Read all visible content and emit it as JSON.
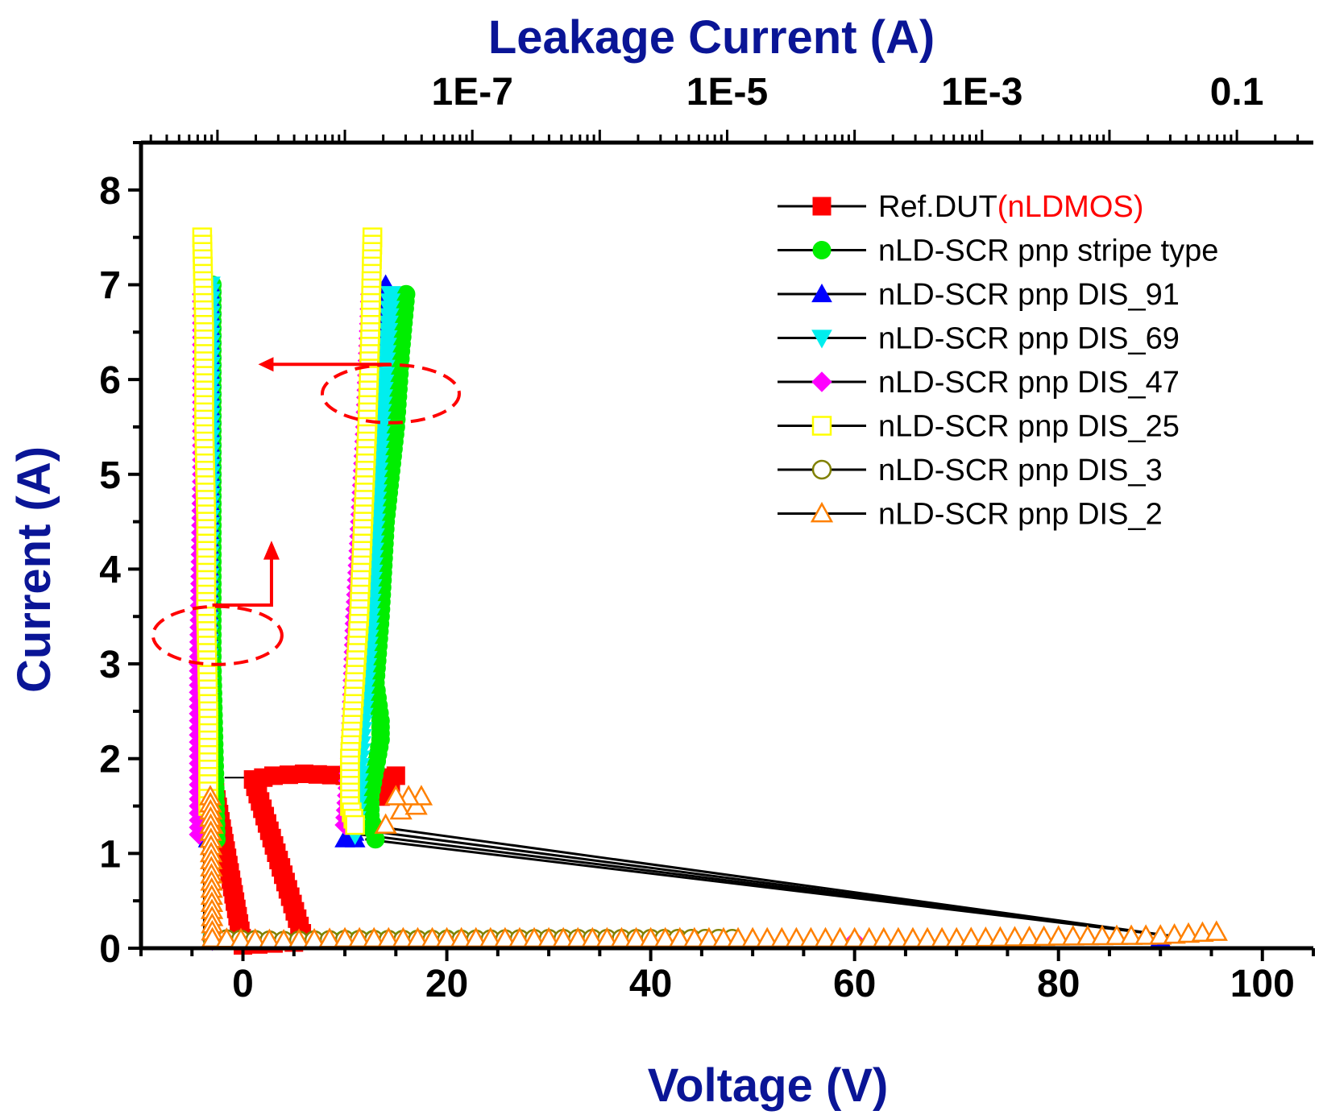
{
  "chart_data": {
    "type": "scatter",
    "xlabel": "Voltage (V)",
    "ylabel": "Current (A)",
    "top_xlabel": "Leakage Current (A)",
    "xlim": [
      -10,
      105
    ],
    "ylim": [
      0,
      8.5
    ],
    "x_ticks": [
      0,
      20,
      40,
      60,
      80,
      100
    ],
    "y_ticks": [
      0,
      1,
      2,
      3,
      4,
      5,
      6,
      7,
      8
    ],
    "top_ticks": [
      {
        "label": "1E-7",
        "logval": -7
      },
      {
        "label": "1E-5",
        "logval": -5
      },
      {
        "label": "1E-3",
        "logval": -3
      },
      {
        "label": "0.1",
        "logval": -1
      }
    ],
    "top_log_range": [
      -9.6,
      -0.4
    ],
    "legend_position": "top-right",
    "colors": {
      "axis_title": "#0a1596",
      "annotation": "#ff0000",
      "link": "#000000"
    },
    "series": [
      {
        "name": "Ref.DUT",
        "name_suffix": "(nLDMOS)",
        "marker": "square",
        "filled": true,
        "color": "#ff0000",
        "leakage": [
          [
            -3.2,
            1.4
          ],
          [
            -3.0,
            1.8
          ]
        ],
        "iv": [
          [
            0,
            0.03
          ],
          [
            3,
            0.05
          ],
          [
            5,
            0.06
          ],
          [
            6,
            0.08
          ],
          [
            1,
            1.78
          ],
          [
            2,
            1.8
          ],
          [
            3,
            1.82
          ],
          [
            6,
            1.84
          ],
          [
            14,
            1.8
          ],
          [
            15,
            1.82
          ],
          [
            13.5,
            1.6
          ]
        ]
      },
      {
        "name": "nLD-SCR pnp stripe type",
        "marker": "circle",
        "filled": true,
        "color": "#00ee00",
        "leakage": [
          [
            -2.6,
            1.15
          ],
          [
            -3.0,
            3.0
          ],
          [
            -3.0,
            5.0
          ],
          [
            -3.0,
            7.0
          ]
        ],
        "iv": [
          [
            -3,
            0.08
          ],
          [
            4,
            0.08
          ],
          [
            20,
            0.1
          ],
          [
            40,
            0.1
          ],
          [
            48,
            0.1
          ],
          [
            13,
            1.15
          ],
          [
            12.5,
            1.4
          ],
          [
            12.5,
            1.6
          ],
          [
            13,
            1.9
          ],
          [
            13.5,
            2.2
          ],
          [
            13.5,
            2.4
          ],
          [
            13,
            2.8
          ],
          [
            13.5,
            3.5
          ],
          [
            14,
            4.5
          ],
          [
            15,
            5.5
          ],
          [
            15.5,
            6.3
          ],
          [
            16,
            6.9
          ]
        ]
      },
      {
        "name": "nLD-SCR pnp DIS_91",
        "marker": "triangle-up",
        "filled": true,
        "color": "#0000ff",
        "leakage": [
          [
            -3.4,
            1.15
          ],
          [
            -3.4,
            3.0
          ],
          [
            -3.2,
            5.0
          ],
          [
            -3.2,
            7.0
          ]
        ],
        "iv": [
          [
            -3,
            0.08
          ],
          [
            50,
            0.08
          ],
          [
            90,
            0.1
          ],
          [
            10,
            1.15
          ],
          [
            11,
            1.15
          ],
          [
            10.5,
            1.5
          ],
          [
            11,
            2.5
          ],
          [
            12,
            4.0
          ],
          [
            13,
            5.5
          ],
          [
            14,
            7.0
          ]
        ]
      },
      {
        "name": "nLD-SCR pnp DIS_69",
        "marker": "triangle-down",
        "filled": true,
        "color": "#00eeee",
        "leakage": [
          [
            -3.4,
            1.15
          ],
          [
            -3.4,
            3.0
          ],
          [
            -3.2,
            5.0
          ],
          [
            -3.2,
            7.0
          ]
        ],
        "iv": [
          [
            -3,
            0.08
          ],
          [
            40,
            0.08
          ],
          [
            11,
            1.2
          ],
          [
            11.5,
            2.0
          ],
          [
            12.5,
            3.5
          ],
          [
            13.5,
            5.5
          ],
          [
            14.5,
            6.9
          ]
        ]
      },
      {
        "name": "nLD-SCR pnp DIS_47",
        "marker": "diamond",
        "filled": true,
        "color": "#ff00ff",
        "leakage": [
          [
            -4.3,
            1.2
          ],
          [
            -4.3,
            3.0
          ],
          [
            -4.0,
            5.0
          ],
          [
            -4.0,
            6.9
          ]
        ],
        "iv": [
          [
            -3,
            0.08
          ],
          [
            60,
            0.08
          ],
          [
            10,
            1.3
          ],
          [
            10.5,
            2.0
          ],
          [
            11,
            3.5
          ],
          [
            12,
            5.5
          ],
          [
            12.5,
            6.9
          ]
        ]
      },
      {
        "name": "nLD-SCR pnp DIS_25",
        "marker": "square",
        "filled": false,
        "color": "#ffff00",
        "leakage": [
          [
            -4.0,
            7.5
          ],
          [
            -3.8,
            6.5
          ],
          [
            -3.8,
            5.5
          ],
          [
            -3.6,
            4.5
          ],
          [
            -3.6,
            3.5
          ],
          [
            -3.4,
            2.5
          ],
          [
            -3.4,
            1.5
          ]
        ],
        "iv": [
          [
            12.7,
            7.5
          ],
          [
            12.5,
            6.5
          ],
          [
            12.2,
            5.5
          ],
          [
            11.8,
            4.5
          ],
          [
            11.4,
            3.5
          ],
          [
            10.8,
            2.5
          ],
          [
            10.5,
            2.0
          ],
          [
            10.5,
            1.5
          ],
          [
            11,
            1.3
          ]
        ]
      },
      {
        "name": "nLD-SCR pnp DIS_3",
        "marker": "circle",
        "filled": false,
        "color": "#808000",
        "leakage": [
          [
            -3.0,
            0.1
          ]
        ],
        "iv": [
          [
            4,
            0.08
          ],
          [
            10,
            0.09
          ],
          [
            20,
            0.09
          ],
          [
            30,
            0.1
          ],
          [
            40,
            0.1
          ],
          [
            48,
            0.1
          ]
        ]
      },
      {
        "name": "nLD-SCR pnp DIS_2",
        "marker": "triangle-up",
        "filled": false,
        "color": "#ff8000",
        "leakage": [
          [
            -3.0,
            1.3
          ],
          [
            -3.2,
            1.6
          ],
          [
            -3.0,
            0.1
          ]
        ],
        "iv": [
          [
            4,
            0.08
          ],
          [
            10,
            0.1
          ],
          [
            20,
            0.1
          ],
          [
            30,
            0.1
          ],
          [
            40,
            0.1
          ],
          [
            50,
            0.1
          ],
          [
            60,
            0.1
          ],
          [
            70,
            0.1
          ],
          [
            80,
            0.12
          ],
          [
            90,
            0.13
          ],
          [
            95.5,
            0.17
          ],
          [
            14,
            1.3
          ],
          [
            15.5,
            1.45
          ],
          [
            17,
            1.5
          ],
          [
            17.5,
            1.6
          ],
          [
            15,
            1.6
          ]
        ]
      }
    ]
  }
}
